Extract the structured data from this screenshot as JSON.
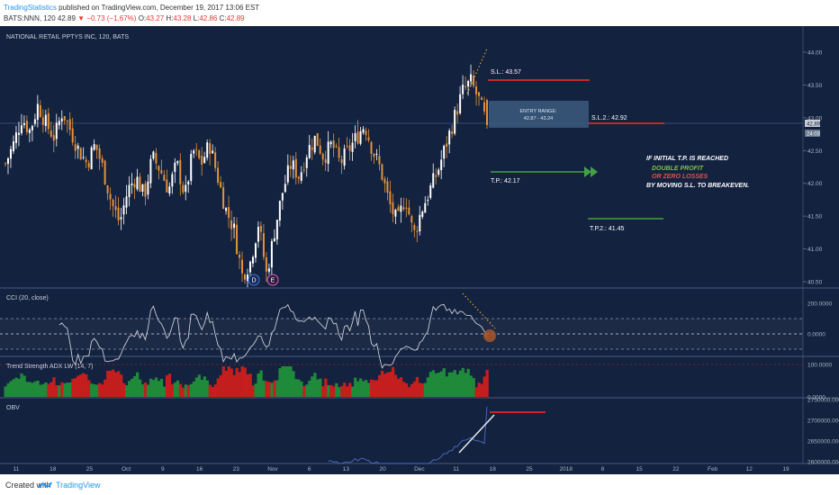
{
  "header": {
    "publisher": "TradingStatistics",
    "published_text": "published on TradingView.com, December 19, 2017 13:06 EST",
    "symbol": "BATS:NNN, 120",
    "price": "42.89",
    "change": "▼ −0.73 (−1.67%)",
    "ohlc": {
      "o_label": "O:",
      "o": "43.27",
      "h_label": "H:",
      "h": "43.28",
      "l_label": "L:",
      "l": "42.86",
      "c_label": "C:",
      "c": "42.89"
    }
  },
  "footer": {
    "created_with": "Created with",
    "brand": "TradingView"
  },
  "colors": {
    "background": "#13223f",
    "candle_up": "#ffffff",
    "candle_down": "#e3923a",
    "stop_line": "#c62828",
    "target_line": "#43a047",
    "entry_box": "#3c5a7e",
    "cci_line": "#c9ccd3",
    "obv_line": "#4a6fc4",
    "adx_up": "#1e8a3a",
    "adx_down": "#c41e1e"
  },
  "main_panel": {
    "title": "NATIONAL RETAIL PPTYS INC, 120, BATS",
    "price_axis": [
      {
        "label": "44.00",
        "v": 44.0
      },
      {
        "label": "43.50",
        "v": 43.5
      },
      {
        "label": "43.00",
        "v": 43.0
      },
      {
        "label": "42.50",
        "v": 42.5
      },
      {
        "label": "42.00",
        "v": 42.0
      },
      {
        "label": "41.50",
        "v": 41.5
      },
      {
        "label": "41.00",
        "v": 41.0
      },
      {
        "label": "40.50",
        "v": 40.5
      }
    ],
    "last_price_tag": "42.89",
    "aux_price_tag": "24:03",
    "stop_loss": {
      "label": "S.L.: 43.57",
      "price": 43.57
    },
    "stop_loss_2": {
      "label": "S.L.2.: 42.92",
      "price": 42.92
    },
    "entry": {
      "line1": "ENTRY RANGE:",
      "line2": "42.87 - 43.24",
      "low": 42.87,
      "high": 43.24
    },
    "target": {
      "label": "T.P.: 42.17",
      "price": 42.17
    },
    "target_2": {
      "label": "T.P.2.: 41.45",
      "price": 41.45
    },
    "note": {
      "line1": "IF INITIAL T.P. IS REACHED",
      "line2": "DOUBLE PROFIT",
      "line3": "OR ZERO LOSSES",
      "line4": "BY MOVING S.L. TO BREAKEVEN."
    },
    "earnings_markers": [
      "D",
      "E"
    ]
  },
  "cci_panel": {
    "title": "CCI (20, close)",
    "axis": [
      {
        "label": "200.0000",
        "v": 200
      },
      {
        "label": "0.0000",
        "v": 0
      }
    ]
  },
  "adx_panel": {
    "title": "Trend Strength ADX LW (14, 7)",
    "axis": [
      {
        "label": "100.0000",
        "v": 100
      },
      {
        "label": "0.0000",
        "v": 0
      }
    ]
  },
  "obv_panel": {
    "title": "OBV",
    "axis": [
      {
        "label": "2750000.0000",
        "v": 2750000
      },
      {
        "label": "2700000.0000",
        "v": 2700000
      },
      {
        "label": "2650000.0000",
        "v": 2650000
      },
      {
        "label": "2600000.0000",
        "v": 2600000
      }
    ]
  },
  "time_axis": [
    "11",
    "18",
    "25",
    "Oct",
    "9",
    "16",
    "23",
    "Nov",
    "6",
    "13",
    "20",
    "Dec",
    "11",
    "18",
    "25",
    "2018",
    "8",
    "15",
    "22",
    "Feb",
    "12",
    "19"
  ],
  "chart_data": {
    "type": "candlestick",
    "symbol": "NNN",
    "interval": "120",
    "x_range": [
      "Sep 11, 2017",
      "Feb 19, 2018"
    ],
    "ylim": [
      40.4,
      44.15
    ],
    "price_path": [
      42.3,
      42.6,
      43.0,
      42.8,
      43.2,
      42.9,
      42.7,
      43.1,
      42.8,
      42.5,
      42.3,
      42.6,
      42.2,
      41.7,
      41.4,
      41.9,
      42.1,
      41.8,
      42.4,
      42.2,
      41.9,
      42.3,
      41.8,
      42.5,
      42.3,
      42.6,
      42.1,
      41.6,
      41.3,
      40.6,
      40.8,
      41.4,
      40.6,
      41.3,
      41.9,
      42.3,
      42.1,
      42.5,
      42.7,
      42.4,
      42.6,
      42.3,
      42.5,
      42.7,
      42.9,
      42.5,
      42.2,
      41.7,
      41.4,
      41.8,
      41.2,
      41.6,
      41.9,
      42.2,
      42.6,
      43.0,
      43.4,
      43.55,
      43.27,
      42.89
    ],
    "last": {
      "open": 43.27,
      "high": 43.28,
      "low": 42.86,
      "close": 42.89,
      "change": -0.73,
      "change_pct": -1.67
    }
  }
}
